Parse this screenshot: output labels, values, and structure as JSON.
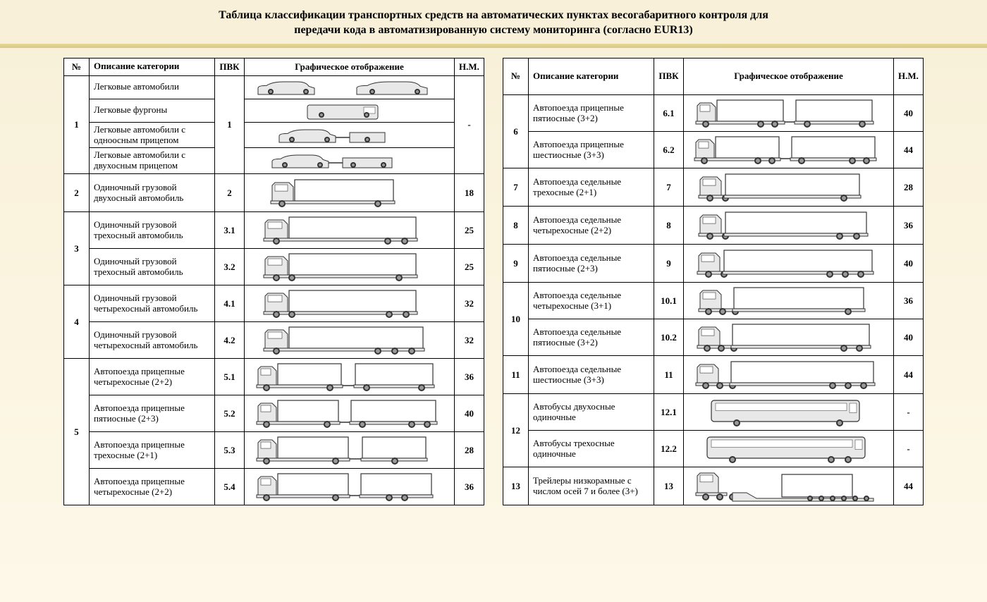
{
  "title_line1": "Таблица классификации транспортных средств на автоматических пунктах весогабаритного контроля для",
  "title_line2": "передачи кода в автоматизированную систему мониторинга (согласно EUR13)",
  "headers": {
    "num": "№",
    "desc": "Описание категории",
    "pvk": "ПВК",
    "gfx": "Графическое отображение",
    "nm": "Н.М."
  },
  "svg_style": {
    "body_fill": "#e8e8e8",
    "body_stroke": "#333333",
    "wheel_fill": "#333333",
    "wheel_stroke": "#000000",
    "cargo_fill": "#ffffff",
    "cargo_stroke": "#333333"
  },
  "left_table": {
    "groups": [
      {
        "num": "1",
        "rows": [
          {
            "desc": "Легковые автомобили",
            "pvk": "",
            "vehicle": "car_pair",
            "nm": ""
          },
          {
            "desc": "Легковые фургоны",
            "pvk": "",
            "vehicle": "van",
            "nm": ""
          },
          {
            "desc": "Легковые автомобили с одноосным прицепом",
            "pvk": "",
            "vehicle": "car_trailer1",
            "nm": ""
          },
          {
            "desc": "Легковые автомобили с двухосным прицепом",
            "pvk": "",
            "vehicle": "car_trailer2",
            "nm": ""
          }
        ],
        "pvk_span": "1",
        "nm_span": "-"
      },
      {
        "num": "2",
        "rows": [
          {
            "desc": "Одиночный грузовой двухосный автомобиль",
            "pvk": "2",
            "vehicle": "truck_2axle",
            "nm": "18"
          }
        ]
      },
      {
        "num": "3",
        "rows": [
          {
            "desc": "Одиночный грузовой трехосный автомобиль",
            "pvk": "3.1",
            "vehicle": "truck_3axle_a",
            "nm": "25"
          },
          {
            "desc": "Одиночный грузовой трехосный автомобиль",
            "pvk": "3.2",
            "vehicle": "truck_3axle_b",
            "nm": "25"
          }
        ]
      },
      {
        "num": "4",
        "rows": [
          {
            "desc": "Одиночный грузовой четырехосный автомобиль",
            "pvk": "4.1",
            "vehicle": "truck_4axle_a",
            "nm": "32"
          },
          {
            "desc": "Одиночный грузовой четырехосный автомобиль",
            "pvk": "4.2",
            "vehicle": "truck_4axle_b",
            "nm": "32"
          }
        ]
      },
      {
        "num": "5",
        "rows": [
          {
            "desc": "Автопоезда прицепные четырехосные (2+2)",
            "pvk": "5.1",
            "vehicle": "trailer_2_2",
            "nm": "36"
          },
          {
            "desc": "Автопоезда прицепные пятиосные (2+3)",
            "pvk": "5.2",
            "vehicle": "trailer_2_3",
            "nm": "40"
          },
          {
            "desc": "Автопоезда прицепные трехосные (2+1)",
            "pvk": "5.3",
            "vehicle": "trailer_2_1",
            "nm": "28"
          },
          {
            "desc": "Автопоезда прицепные четырехосные (2+2)",
            "pvk": "5.4",
            "vehicle": "trailer_2_2b",
            "nm": "36"
          }
        ]
      }
    ]
  },
  "right_table": {
    "groups": [
      {
        "num": "6",
        "rows": [
          {
            "desc": "Автопоезда прицепные пятиосные (3+2)",
            "pvk": "6.1",
            "vehicle": "trailer_3_2",
            "nm": "40"
          },
          {
            "desc": "Автопоезда прицепные шестиосные (3+3)",
            "pvk": "6.2",
            "vehicle": "trailer_3_3",
            "nm": "44"
          }
        ]
      },
      {
        "num": "7",
        "rows": [
          {
            "desc": "Автопоезда седельные трехосные (2+1)",
            "pvk": "7",
            "vehicle": "semi_2_1",
            "nm": "28"
          }
        ]
      },
      {
        "num": "8",
        "rows": [
          {
            "desc": "Автопоезда седельные четырехосные (2+2)",
            "pvk": "8",
            "vehicle": "semi_2_2",
            "nm": "36"
          }
        ]
      },
      {
        "num": "9",
        "rows": [
          {
            "desc": "Автопоезда седельные пятиосные (2+3)",
            "pvk": "9",
            "vehicle": "semi_2_3",
            "nm": "40"
          }
        ]
      },
      {
        "num": "10",
        "rows": [
          {
            "desc": "Автопоезда седельные четырехосные (3+1)",
            "pvk": "10.1",
            "vehicle": "semi_3_1",
            "nm": "36"
          },
          {
            "desc": "Автопоезда седельные пятиосные (3+2)",
            "pvk": "10.2",
            "vehicle": "semi_3_2",
            "nm": "40"
          }
        ]
      },
      {
        "num": "11",
        "rows": [
          {
            "desc": "Автопоезда седельные шестиосные (3+3)",
            "pvk": "11",
            "vehicle": "semi_3_3",
            "nm": "44"
          }
        ]
      },
      {
        "num": "12",
        "rows": [
          {
            "desc": "Автобусы двухосные одиночные",
            "pvk": "12.1",
            "vehicle": "bus_2",
            "nm": "-"
          },
          {
            "desc": "Автобусы трехосные одиночные",
            "pvk": "12.2",
            "vehicle": "bus_3",
            "nm": "-"
          }
        ]
      },
      {
        "num": "13",
        "rows": [
          {
            "desc": "Трейлеры низкорамные с числом осей 7 и более (3+)",
            "pvk": "13",
            "vehicle": "lowbed",
            "nm": "44"
          }
        ]
      }
    ]
  }
}
